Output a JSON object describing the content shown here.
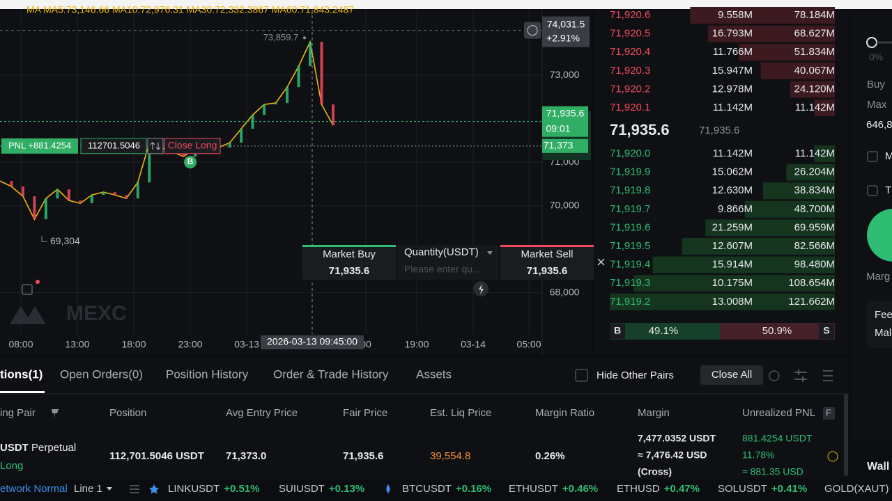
{
  "chart_data": {
    "type": "line",
    "ma_legend": "MA  MA5:73,146.66  MA10:72,976.31  MA30:72,332.3867  MA60:71,843.2487",
    "values": [
      70568,
      70440,
      70216,
      69688,
      70168,
      70376,
      70120,
      70056,
      70248,
      70312,
      70248,
      70168,
      70536,
      71448,
      71336,
      71240,
      71128,
      71336,
      71288,
      71336,
      71448,
      71768,
      72088,
      72328,
      72360,
      72728,
      73208,
      73768,
      72328,
      71848
    ],
    "color": "#f0b90b",
    "ylim": [
      67050,
      74730
    ],
    "yticks": [
      {
        "value": 68000,
        "label": "68,000"
      },
      {
        "value": 70000,
        "label": "70,000"
      },
      {
        "value": 71000,
        "label": "71,000"
      },
      {
        "value": 73000,
        "label": "73,000"
      }
    ],
    "grid": true,
    "time_labels": [
      "08:00",
      "13:00",
      "18:00",
      "23:00",
      "03-13",
      "00",
      "19:00",
      "03-14",
      "05:00"
    ],
    "high_label": {
      "value": 73859.7,
      "label": "73,859.7"
    },
    "low_label": {
      "value": 69304,
      "label": "69,304"
    },
    "last_price": {
      "value": 71935.6,
      "label": "71,935.6"
    },
    "countdown": "09:01",
    "entry_price": {
      "value": 71373,
      "label": "71,373"
    },
    "crosshair": {
      "price": {
        "value": 74031.5,
        "label": "74,031.5"
      },
      "change": "+2.91%",
      "time": "2026-03-13 09:45:00"
    },
    "position_line": {
      "pnl": "PNL +881.4254",
      "size": "112701.5046",
      "action": "Close Long",
      "marker": "B"
    },
    "watermark": "MEXC"
  },
  "quick_trade": {
    "buy": "Market Buy",
    "buy_price": "71,935.6",
    "quantity": "Quantity(USDT)",
    "placeholder": "Please enter qu...",
    "sell": "Market Sell",
    "sell_price": "71,935.6"
  },
  "order_book": {
    "asks": [
      {
        "price": "71,920.6",
        "size": "9.558M",
        "total": {
          "value": 78.184,
          "label": "78.184M"
        }
      },
      {
        "price": "71,920.5",
        "size": "16.793M",
        "total": {
          "value": 68.627,
          "label": "68.627M"
        }
      },
      {
        "price": "71,920.4",
        "size": "11.766M",
        "total": {
          "value": 51.834,
          "label": "51.834M"
        }
      },
      {
        "price": "71,920.3",
        "size": "15.947M",
        "total": {
          "value": 40.067,
          "label": "40.067M"
        }
      },
      {
        "price": "71,920.2",
        "size": "12.978M",
        "total": {
          "value": 24.12,
          "label": "24.120M"
        }
      },
      {
        "price": "71,920.1",
        "size": "11.142M",
        "total": {
          "value": 11.142,
          "label": "11.142M"
        }
      }
    ],
    "last": "71,935.6",
    "mark": "71,935.6",
    "bids": [
      {
        "price": "71,920.0",
        "size": "11.142M",
        "total": {
          "value": 11.142,
          "label": "11.142M"
        }
      },
      {
        "price": "71,919.9",
        "size": "15.062M",
        "total": {
          "value": 26.204,
          "label": "26.204M"
        }
      },
      {
        "price": "71,919.8",
        "size": "12.630M",
        "total": {
          "value": 38.834,
          "label": "38.834M"
        }
      },
      {
        "price": "71,919.7",
        "size": "9.866M",
        "total": {
          "value": 48.7,
          "label": "48.700M"
        }
      },
      {
        "price": "71,919.6",
        "size": "21.259M",
        "total": {
          "value": 69.959,
          "label": "69.959M"
        }
      },
      {
        "price": "71,919.5",
        "size": "12.607M",
        "total": {
          "value": 82.566,
          "label": "82.566M"
        }
      },
      {
        "price": "71,919.4",
        "size": "15.914M",
        "total": {
          "value": 98.48,
          "label": "98.480M"
        }
      },
      {
        "price": "71,919.3",
        "size": "10.175M",
        "total": {
          "value": 108.654,
          "label": "108.654M"
        }
      },
      {
        "price": "71,919.2",
        "size": "13.008M",
        "total": {
          "value": 121.662,
          "label": "121.662M"
        }
      }
    ],
    "buy_tag": "B",
    "buy_ratio": {
      "value": 49.1,
      "label": "49.1%"
    },
    "sell_ratio": {
      "value": 50.9,
      "label": "50.9%"
    },
    "sell_tag": "S"
  },
  "side_panel": {
    "percent": "0%",
    "buy": "Buy",
    "max": "Max",
    "amount": "646,8",
    "opt1": "M",
    "opt2": "T",
    "margin": "Marg",
    "fee": "Fee",
    "maker": "Mal",
    "wallet": "Wall"
  },
  "positions": {
    "tabs": [
      "tions(1)",
      "Open Orders(0)",
      "Position History",
      "Order & Trade History",
      "Assets"
    ],
    "hide_pairs": "Hide Other Pairs",
    "close_all": "Close All",
    "headers": [
      "ing Pair",
      "Position",
      "Avg Entry Price",
      "Fair Price",
      "Est. Liq Price",
      "Margin Ratio",
      "Margin",
      "Unrealized PNL"
    ],
    "header_flag": "F",
    "row": {
      "pair": "USDT",
      "contract": "Perpetual",
      "side": "Long",
      "position": "112,701.5046 USDT",
      "entry": "71,373.0",
      "fair": "71,935.6",
      "liq": "39,554.8",
      "ratio": "0.26%",
      "margin": "7,477.0352 USDT",
      "margin_usd": "≈ 7,476.42 USD",
      "mode": "(Cross)",
      "pnl": "881.4254 USDT",
      "pnl_pct": "11.78%",
      "pnl_usd": "≈ 881.35 USD"
    }
  },
  "ticker_bar": {
    "network": "etwork Normal",
    "line": "Line 1",
    "items": [
      {
        "symbol": "LINKUSDT",
        "change": "+0.51%"
      },
      {
        "symbol": "SUIUSDT",
        "change": "+0.13%"
      },
      {
        "symbol": "BTCUSDT",
        "change": "+0.16%"
      },
      {
        "symbol": "ETHUSDT",
        "change": "+0.46%"
      },
      {
        "symbol": "ETHUSD",
        "change": "+0.47%"
      },
      {
        "symbol": "SOLUSDT",
        "change": "+0.41%"
      },
      {
        "symbol": "GOLD(XAUT)",
        "change": null
      }
    ]
  }
}
